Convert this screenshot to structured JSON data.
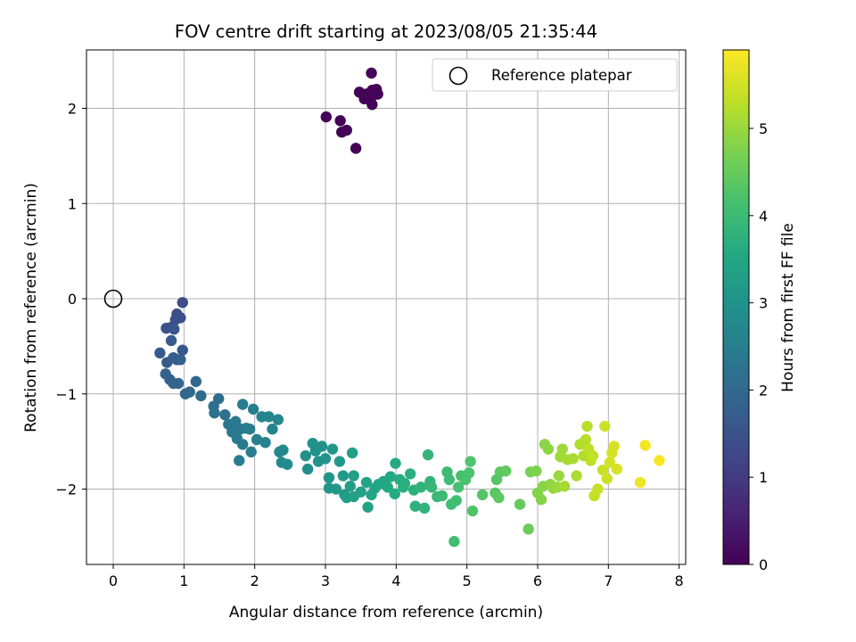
{
  "chart_data": {
    "type": "scatter",
    "title": "FOV centre drift starting at 2023/08/05 21:35:44",
    "xlabel": "Angular distance from reference (arcmin)",
    "ylabel": "Rotation from reference (arcmin)",
    "xlim": [
      -0.37,
      8.08
    ],
    "ylim": [
      -2.78,
      2.62
    ],
    "xticks": [
      "0",
      "1",
      "2",
      "3",
      "4",
      "5",
      "6",
      "7",
      "8"
    ],
    "yticks": [
      "2",
      "1",
      "0",
      "−1",
      "−2"
    ],
    "grid": true,
    "legend": {
      "placement": "top-right",
      "entries": [
        "Reference platepar"
      ]
    },
    "reference_point": {
      "x": 0,
      "y": 0,
      "marker": "open-circle"
    },
    "colorbar": {
      "label": "Hours from first FF file",
      "range": [
        0,
        5.9
      ],
      "ticks": [
        "0",
        "1",
        "2",
        "3",
        "4",
        "5"
      ],
      "colormap": "viridis"
    },
    "points": [
      [
        3.01,
        1.91,
        0.05
      ],
      [
        3.21,
        1.87,
        0.05
      ],
      [
        3.23,
        1.75,
        0.05
      ],
      [
        3.3,
        1.77,
        0.05
      ],
      [
        3.43,
        1.58,
        0.05
      ],
      [
        3.48,
        2.17,
        0.05
      ],
      [
        3.55,
        2.1,
        0.05
      ],
      [
        3.58,
        2.15,
        0.05
      ],
      [
        3.61,
        2.12,
        0.05
      ],
      [
        3.65,
        2.37,
        0.05
      ],
      [
        3.66,
        2.19,
        0.05
      ],
      [
        3.68,
        2.14,
        0.05
      ],
      [
        3.66,
        2.04,
        0.05
      ],
      [
        3.74,
        2.15,
        0.05
      ],
      [
        3.72,
        2.2,
        0.05
      ],
      [
        0.98,
        -0.04,
        1.35
      ],
      [
        0.95,
        -0.2,
        1.4
      ],
      [
        0.9,
        -0.16,
        1.4
      ],
      [
        0.88,
        -0.22,
        1.45
      ],
      [
        0.75,
        -0.31,
        1.5
      ],
      [
        0.82,
        -0.3,
        1.5
      ],
      [
        0.86,
        -0.32,
        1.55
      ],
      [
        0.98,
        -0.54,
        1.6
      ],
      [
        0.66,
        -0.57,
        1.65
      ],
      [
        0.82,
        -0.44,
        1.65
      ],
      [
        0.76,
        -0.67,
        1.7
      ],
      [
        0.85,
        -0.62,
        1.75
      ],
      [
        0.9,
        -0.64,
        1.75
      ],
      [
        0.95,
        -0.64,
        1.8
      ],
      [
        0.74,
        -0.79,
        1.8
      ],
      [
        0.8,
        -0.85,
        1.85
      ],
      [
        0.85,
        -0.89,
        1.9
      ],
      [
        0.92,
        -0.89,
        1.9
      ],
      [
        1.02,
        -1.0,
        1.95
      ],
      [
        1.08,
        -0.98,
        2.0
      ],
      [
        1.17,
        -0.87,
        2.0
      ],
      [
        1.24,
        -1.02,
        2.05
      ],
      [
        1.42,
        -1.13,
        2.15
      ],
      [
        1.49,
        -1.05,
        2.15
      ],
      [
        1.43,
        -1.2,
        2.2
      ],
      [
        1.58,
        -1.22,
        2.2
      ],
      [
        1.63,
        -1.32,
        2.3
      ],
      [
        1.68,
        -1.4,
        2.3
      ],
      [
        1.73,
        -1.29,
        2.35
      ],
      [
        1.75,
        -1.47,
        2.4
      ],
      [
        1.8,
        -1.37,
        2.4
      ],
      [
        1.83,
        -1.53,
        2.45
      ],
      [
        1.88,
        -1.36,
        2.45
      ],
      [
        1.93,
        -1.37,
        2.5
      ],
      [
        1.95,
        -1.61,
        2.5
      ],
      [
        1.78,
        -1.7,
        2.5
      ],
      [
        1.83,
        -1.11,
        2.5
      ],
      [
        1.98,
        -1.16,
        2.55
      ],
      [
        2.03,
        -1.48,
        2.55
      ],
      [
        2.1,
        -1.24,
        2.6
      ],
      [
        2.15,
        -1.51,
        2.6
      ],
      [
        2.2,
        -1.24,
        2.65
      ],
      [
        2.25,
        -1.37,
        2.65
      ],
      [
        2.33,
        -1.27,
        2.7
      ],
      [
        2.35,
        -1.61,
        2.7
      ],
      [
        2.4,
        -1.59,
        2.75
      ],
      [
        2.38,
        -1.72,
        2.75
      ],
      [
        2.46,
        -1.74,
        2.8
      ],
      [
        2.72,
        -1.65,
        2.9
      ],
      [
        2.75,
        -1.79,
        2.9
      ],
      [
        2.82,
        -1.52,
        2.95
      ],
      [
        2.86,
        -1.6,
        2.95
      ],
      [
        2.9,
        -1.71,
        3.0
      ],
      [
        2.95,
        -1.55,
        3.0
      ],
      [
        3.0,
        -1.68,
        3.05
      ],
      [
        3.05,
        -1.88,
        3.05
      ],
      [
        3.1,
        -1.58,
        3.1
      ],
      [
        3.05,
        -1.99,
        3.1
      ],
      [
        3.15,
        -2.0,
        3.15
      ],
      [
        3.2,
        -1.71,
        3.15
      ],
      [
        3.25,
        -1.86,
        3.2
      ],
      [
        3.27,
        -2.06,
        3.2
      ],
      [
        3.3,
        -2.09,
        3.25
      ],
      [
        3.35,
        -1.97,
        3.25
      ],
      [
        3.38,
        -1.62,
        3.3
      ],
      [
        3.4,
        -1.86,
        3.3
      ],
      [
        3.4,
        -2.08,
        3.35
      ],
      [
        3.5,
        -2.03,
        3.35
      ],
      [
        3.58,
        -1.93,
        3.4
      ],
      [
        3.6,
        -2.19,
        3.4
      ],
      [
        3.65,
        -2.06,
        3.45
      ],
      [
        3.7,
        -1.99,
        3.45
      ],
      [
        3.75,
        -1.95,
        3.5
      ],
      [
        3.82,
        -1.92,
        3.5
      ],
      [
        3.88,
        -1.98,
        3.55
      ],
      [
        3.92,
        -1.87,
        3.55
      ],
      [
        3.98,
        -2.05,
        3.6
      ],
      [
        3.99,
        -1.73,
        3.6
      ],
      [
        4.05,
        -1.9,
        3.65
      ],
      [
        4.1,
        -1.98,
        3.65
      ],
      [
        4.12,
        -1.94,
        3.7
      ],
      [
        4.2,
        -1.84,
        3.7
      ],
      [
        4.25,
        -2.01,
        3.75
      ],
      [
        4.27,
        -2.18,
        3.75
      ],
      [
        4.35,
        -1.98,
        3.8
      ],
      [
        4.4,
        -2.2,
        3.8
      ],
      [
        4.45,
        -1.64,
        3.85
      ],
      [
        4.48,
        -1.92,
        3.85
      ],
      [
        4.5,
        -1.98,
        3.9
      ],
      [
        4.58,
        -2.08,
        3.95
      ],
      [
        4.65,
        -2.07,
        4.0
      ],
      [
        4.72,
        -1.82,
        4.0
      ],
      [
        4.75,
        -1.9,
        4.05
      ],
      [
        4.78,
        -2.16,
        4.05
      ],
      [
        4.82,
        -2.55,
        4.1
      ],
      [
        4.85,
        -2.12,
        4.1
      ],
      [
        4.88,
        -1.98,
        4.15
      ],
      [
        4.92,
        -1.86,
        4.15
      ],
      [
        4.98,
        -1.9,
        4.2
      ],
      [
        5.03,
        -1.83,
        4.2
      ],
      [
        5.05,
        -1.71,
        4.25
      ],
      [
        5.08,
        -2.23,
        4.25
      ],
      [
        5.22,
        -2.06,
        4.3
      ],
      [
        5.4,
        -2.04,
        4.35
      ],
      [
        5.42,
        -1.9,
        4.35
      ],
      [
        5.45,
        -2.09,
        4.4
      ],
      [
        5.47,
        -1.82,
        4.4
      ],
      [
        5.55,
        -1.81,
        4.45
      ],
      [
        5.75,
        -2.16,
        4.5
      ],
      [
        5.87,
        -2.42,
        4.55
      ],
      [
        5.9,
        -1.82,
        4.7
      ],
      [
        5.98,
        -1.81,
        4.75
      ],
      [
        6.0,
        -2.04,
        4.8
      ],
      [
        6.05,
        -2.11,
        4.8
      ],
      [
        6.08,
        -1.97,
        4.85
      ],
      [
        6.1,
        -1.53,
        4.85
      ],
      [
        6.15,
        -1.58,
        4.9
      ],
      [
        6.18,
        -1.95,
        4.9
      ],
      [
        6.22,
        -1.99,
        4.95
      ],
      [
        6.28,
        -1.98,
        5.0
      ],
      [
        6.3,
        -1.86,
        5.0
      ],
      [
        6.32,
        -1.66,
        5.05
      ],
      [
        6.35,
        -1.58,
        5.05
      ],
      [
        6.38,
        -1.97,
        5.1
      ],
      [
        6.42,
        -1.69,
        5.1
      ],
      [
        6.5,
        -1.68,
        5.15
      ],
      [
        6.55,
        -1.86,
        5.15
      ],
      [
        6.6,
        -1.53,
        5.2
      ],
      [
        6.65,
        -1.65,
        5.2
      ],
      [
        6.68,
        -1.48,
        5.25
      ],
      [
        6.7,
        -1.34,
        5.25
      ],
      [
        6.72,
        -1.58,
        5.3
      ],
      [
        6.75,
        -1.7,
        5.3
      ],
      [
        6.78,
        -1.65,
        5.35
      ],
      [
        6.8,
        -2.07,
        5.35
      ],
      [
        6.85,
        -2.0,
        5.4
      ],
      [
        6.92,
        -1.8,
        5.4
      ],
      [
        6.95,
        -1.34,
        5.45
      ],
      [
        6.98,
        -1.89,
        5.45
      ],
      [
        7.02,
        -1.72,
        5.5
      ],
      [
        7.05,
        -1.62,
        5.5
      ],
      [
        7.08,
        -1.55,
        5.55
      ],
      [
        7.12,
        -1.79,
        5.55
      ],
      [
        7.45,
        -1.93,
        5.75
      ],
      [
        7.52,
        -1.54,
        5.8
      ],
      [
        7.72,
        -1.7,
        5.85
      ]
    ]
  }
}
